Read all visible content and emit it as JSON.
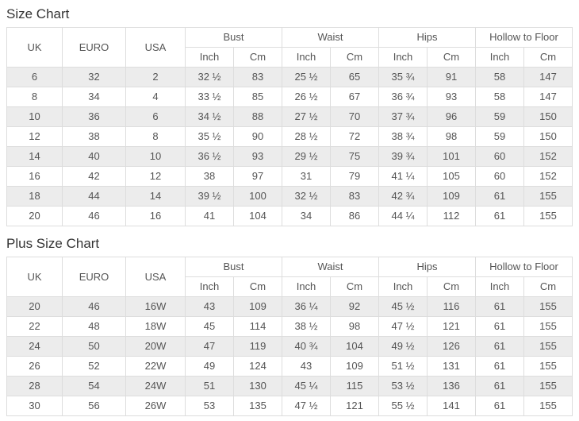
{
  "colors": {
    "stripe": "#ececec",
    "border": "#dddddd",
    "cell_text": "#555555",
    "title_text": "#333333",
    "page_background": "#ffffff"
  },
  "tables": [
    {
      "title": "Size Chart",
      "simple_headers": [
        "UK",
        "EURO",
        "USA"
      ],
      "group_headers": [
        "Bust",
        "Waist",
        "Hips",
        "Hollow to Floor"
      ],
      "unit_headers": [
        "Inch",
        "Cm"
      ],
      "rows": [
        [
          "6",
          "32",
          "2",
          "32 ½",
          "83",
          "25 ½",
          "65",
          "35 ¾",
          "91",
          "58",
          "147"
        ],
        [
          "8",
          "34",
          "4",
          "33 ½",
          "85",
          "26 ½",
          "67",
          "36 ¾",
          "93",
          "58",
          "147"
        ],
        [
          "10",
          "36",
          "6",
          "34 ½",
          "88",
          "27 ½",
          "70",
          "37 ¾",
          "96",
          "59",
          "150"
        ],
        [
          "12",
          "38",
          "8",
          "35 ½",
          "90",
          "28 ½",
          "72",
          "38 ¾",
          "98",
          "59",
          "150"
        ],
        [
          "14",
          "40",
          "10",
          "36 ½",
          "93",
          "29 ½",
          "75",
          "39 ¾",
          "101",
          "60",
          "152"
        ],
        [
          "16",
          "42",
          "12",
          "38",
          "97",
          "31",
          "79",
          "41 ¼",
          "105",
          "60",
          "152"
        ],
        [
          "18",
          "44",
          "14",
          "39 ½",
          "100",
          "32 ½",
          "83",
          "42 ¾",
          "109",
          "61",
          "155"
        ],
        [
          "20",
          "46",
          "16",
          "41",
          "104",
          "34",
          "86",
          "44 ¼",
          "112",
          "61",
          "155"
        ]
      ]
    },
    {
      "title": "Plus Size Chart",
      "simple_headers": [
        "UK",
        "EURO",
        "USA"
      ],
      "group_headers": [
        "Bust",
        "Waist",
        "Hips",
        "Hollow to Floor"
      ],
      "unit_headers": [
        "Inch",
        "Cm"
      ],
      "rows": [
        [
          "20",
          "46",
          "16W",
          "43",
          "109",
          "36 ¼",
          "92",
          "45 ½",
          "116",
          "61",
          "155"
        ],
        [
          "22",
          "48",
          "18W",
          "45",
          "114",
          "38 ½",
          "98",
          "47 ½",
          "121",
          "61",
          "155"
        ],
        [
          "24",
          "50",
          "20W",
          "47",
          "119",
          "40 ¾",
          "104",
          "49 ½",
          "126",
          "61",
          "155"
        ],
        [
          "26",
          "52",
          "22W",
          "49",
          "124",
          "43",
          "109",
          "51 ½",
          "131",
          "61",
          "155"
        ],
        [
          "28",
          "54",
          "24W",
          "51",
          "130",
          "45 ¼",
          "115",
          "53 ½",
          "136",
          "61",
          "155"
        ],
        [
          "30",
          "56",
          "26W",
          "53",
          "135",
          "47 ½",
          "121",
          "55 ½",
          "141",
          "61",
          "155"
        ]
      ]
    }
  ]
}
